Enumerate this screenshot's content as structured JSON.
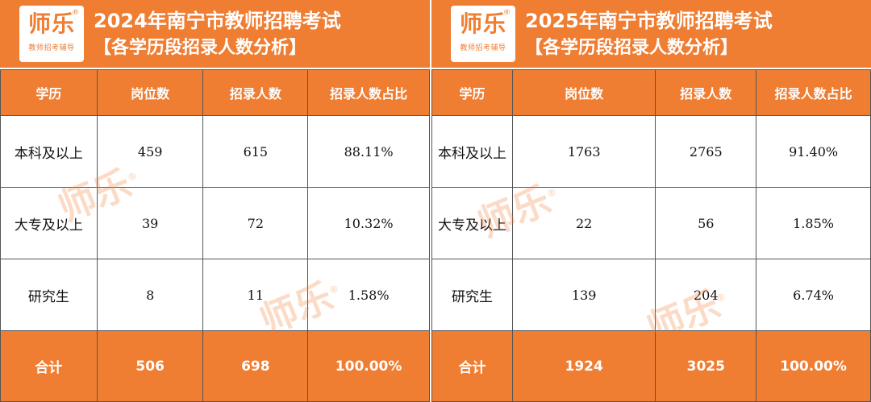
{
  "brand": {
    "mark": "师乐",
    "reg": "®",
    "sub": "教师招考辅导"
  },
  "watermark": "师乐",
  "left": {
    "title": "2024年南宁市教师招聘考试",
    "subtitle": "【各学历段招录人数分析】",
    "headers": [
      "学历",
      "岗位数",
      "招录人数",
      "招录人数占比"
    ],
    "rows": [
      [
        "本科及以上",
        "459",
        "615",
        "88.11%"
      ],
      [
        "大专及以上",
        "39",
        "72",
        "10.32%"
      ],
      [
        "研究生",
        "8",
        "11",
        "1.58%"
      ]
    ],
    "total": [
      "合计",
      "506",
      "698",
      "100.00%"
    ]
  },
  "right": {
    "title": "2025年南宁市教师招聘考试",
    "subtitle": "【各学历段招录人数分析】",
    "headers": [
      "学历",
      "岗位数",
      "招录人数",
      "招录人数占比"
    ],
    "rows": [
      [
        "本科及以上",
        "1763",
        "2765",
        "91.40%"
      ],
      [
        "大专及以上",
        "22",
        "56",
        "1.85%"
      ],
      [
        "研究生",
        "139",
        "204",
        "6.74%"
      ]
    ],
    "total": [
      "合计",
      "1924",
      "3025",
      "100.00%"
    ]
  },
  "colors": {
    "accent": "#ef7d32",
    "border": "#555555",
    "text": "#111111"
  }
}
